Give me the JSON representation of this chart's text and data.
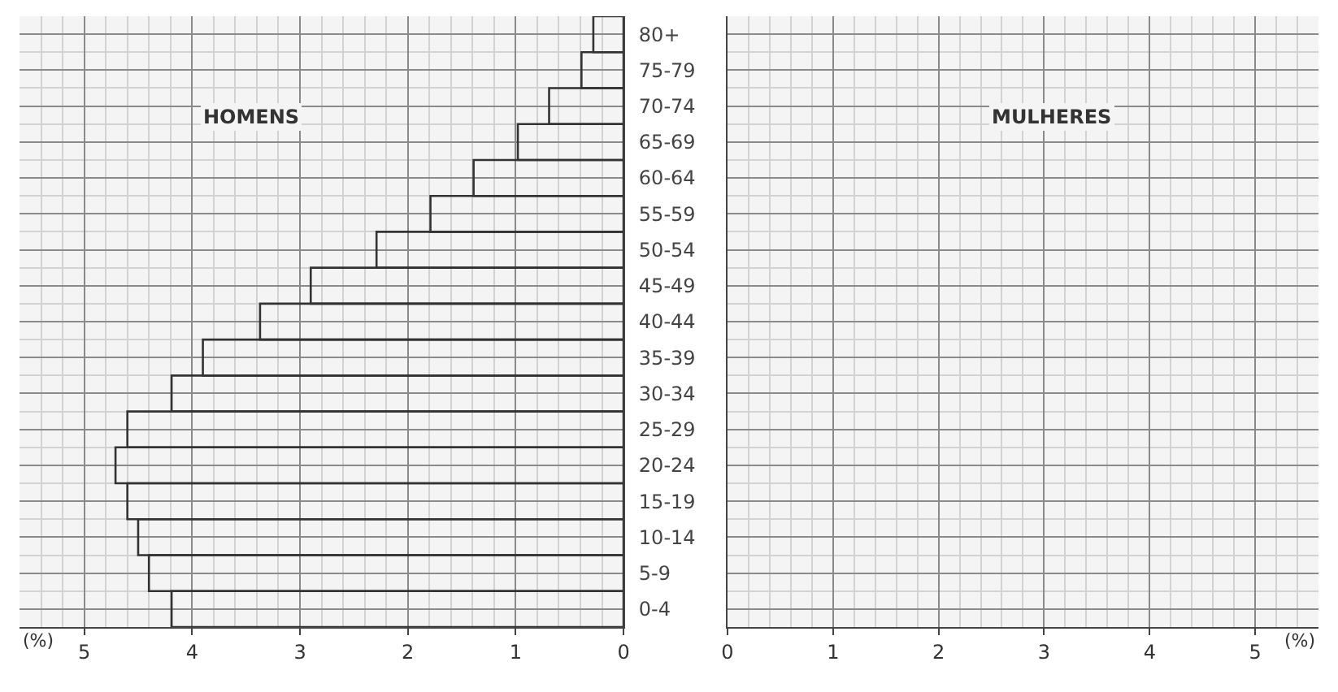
{
  "chart_data": {
    "type": "bar",
    "orientation": "horizontal",
    "categories": [
      "80+",
      "75-79",
      "70-74",
      "65-69",
      "60-64",
      "55-59",
      "50-54",
      "45-49",
      "40-44",
      "35-39",
      "30-34",
      "25-29",
      "20-24",
      "15-19",
      "10-14",
      "5-9",
      "0-4"
    ],
    "series": [
      {
        "color": "#333333",
        "values": [
          0.28,
          0.39,
          0.69,
          0.98,
          1.39,
          1.79,
          2.29,
          2.9,
          3.37,
          3.9,
          4.19,
          4.6,
          4.71,
          4.6,
          4.5,
          4.4,
          4.19
        ]
      }
    ],
    "xlim": [
      5.6,
      0
    ],
    "xticks": [
      5,
      4,
      3,
      2,
      1,
      0
    ],
    "x2lim": [
      0,
      5.6
    ],
    "x2ticks": [
      0,
      1,
      2,
      3,
      4,
      5
    ],
    "grid": true,
    "annotations": [
      "HOMENS",
      "MULHERES",
      "(%)",
      "(%)"
    ]
  }
}
